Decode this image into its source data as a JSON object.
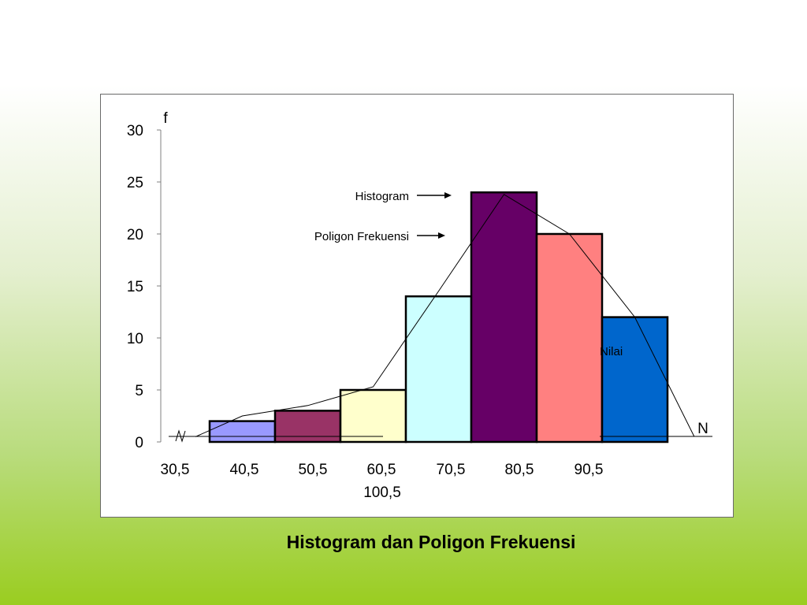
{
  "caption": "Histogram dan Poligon Frekuensi",
  "chart_data": {
    "type": "bar",
    "title": "",
    "ylabel": "f",
    "xlabel_end": "N",
    "ylim": [
      0,
      30
    ],
    "yticks": [
      "0",
      "5",
      "10",
      "15",
      "20",
      "25",
      "30"
    ],
    "x_tick_labels": [
      "30,5",
      "40,5",
      "50,5",
      "60,5",
      "70,5",
      "80,5",
      "90,5"
    ],
    "x_tick_label_extra": "100,5",
    "bins": [
      {
        "from": "30,5",
        "to": "40,5",
        "value": 2
      },
      {
        "from": "40,5",
        "to": "50,5",
        "value": 3
      },
      {
        "from": "50,5",
        "to": "60,5",
        "value": 5
      },
      {
        "from": "60,5",
        "to": "70,5",
        "value": 14
      },
      {
        "from": "70,5",
        "to": "80,5",
        "value": 24
      },
      {
        "from": "80,5",
        "to": "90,5",
        "value": 20
      },
      {
        "from": "90,5",
        "to": "100,5",
        "value": 12
      }
    ],
    "bar_colors": [
      "#9999ff",
      "#993366",
      "#ffffcc",
      "#ccffff",
      "#660066",
      "#ff8080",
      "#0066cc"
    ],
    "polygon": {
      "name": "Poligon Frekuensi",
      "values": [
        0.5,
        2.5,
        3.5,
        5.3,
        14.5,
        23.8,
        20,
        12,
        0.5
      ]
    },
    "annotations": {
      "histogram": "Histogram",
      "polygon": "Poligon Frekuensi",
      "value_axis": "Nilai"
    }
  }
}
